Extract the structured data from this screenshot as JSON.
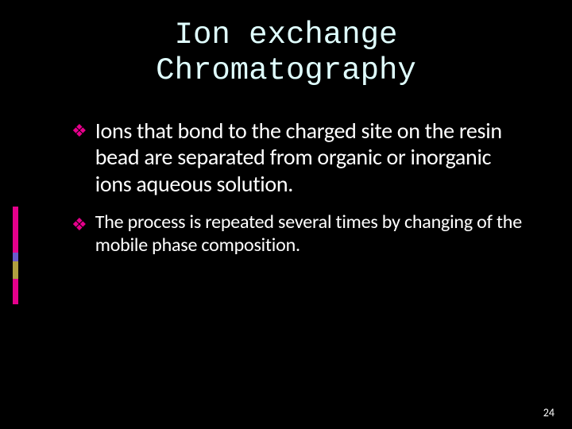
{
  "slide": {
    "title": "Ion exchange Chromatography",
    "title_font": "Consolas",
    "title_color": "#e0ffff",
    "title_fontsize": 39,
    "bullets": [
      {
        "text": "Ions that bond to the charged site on the resin bead are separated from organic or inorganic ions aqueous solution.",
        "marker_color": "#e6008c",
        "fontsize": 28
      },
      {
        "text": "The process is repeated several times by changing of the mobile phase composition.",
        "marker_color": "#e6008c",
        "fontsize": 24
      }
    ],
    "bullet_marker_glyph": "❖",
    "sidebar_segments": [
      {
        "color": "#e6008c",
        "height": 58
      },
      {
        "color": "#6a5acd",
        "height": 11
      },
      {
        "color": "#b0a040",
        "height": 11
      },
      {
        "color": "#b0a040",
        "height": 11
      },
      {
        "color": "#e6008c",
        "height": 32
      }
    ],
    "page_number": "24",
    "background_color": "#000000",
    "text_color": "#ffffff"
  }
}
